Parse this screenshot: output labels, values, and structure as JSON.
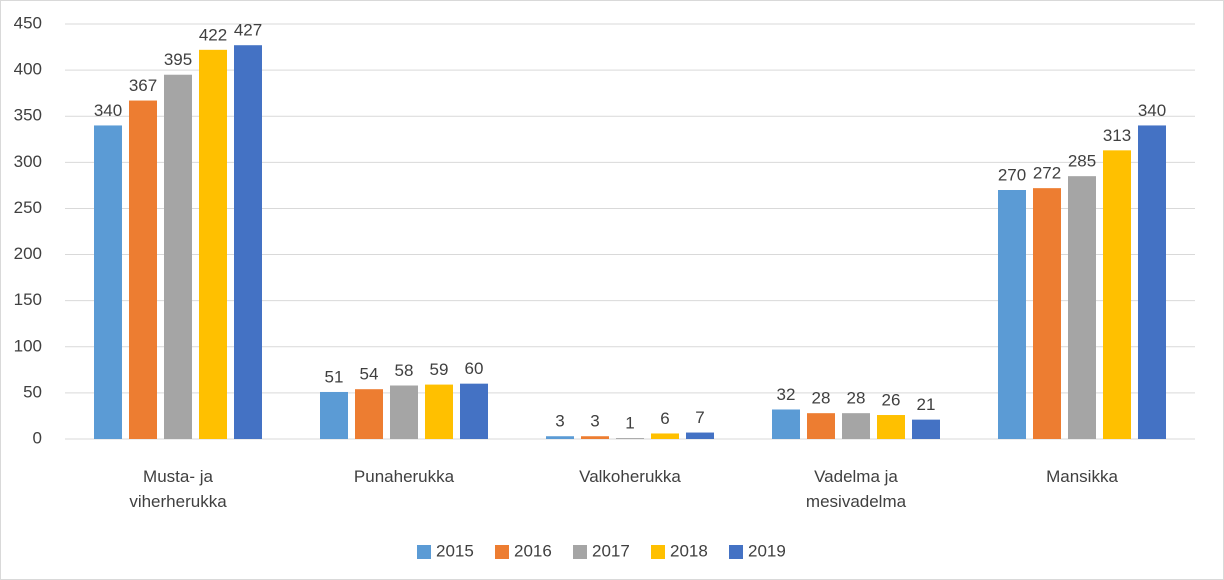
{
  "chart_data": {
    "type": "bar",
    "categories": [
      "Musta- ja viherherukka",
      "Punaherukka",
      "Valkoherukka",
      "Vadelma ja mesivadelma",
      "Mansikka"
    ],
    "series": [
      {
        "name": "2015",
        "color": "#5b9bd5",
        "values": [
          340,
          51,
          3,
          32,
          270
        ]
      },
      {
        "name": "2016",
        "color": "#ed7d31",
        "values": [
          367,
          54,
          3,
          28,
          272
        ]
      },
      {
        "name": "2017",
        "color": "#a5a5a5",
        "values": [
          395,
          58,
          1,
          28,
          285
        ]
      },
      {
        "name": "2018",
        "color": "#ffc000",
        "values": [
          422,
          59,
          6,
          26,
          313
        ]
      },
      {
        "name": "2019",
        "color": "#4472c4",
        "values": [
          427,
          60,
          7,
          21,
          340
        ]
      }
    ],
    "ylim": [
      0,
      450
    ],
    "yticks": [
      0,
      50,
      100,
      150,
      200,
      250,
      300,
      350,
      400,
      450
    ],
    "grid": true,
    "legend": "bottom"
  }
}
